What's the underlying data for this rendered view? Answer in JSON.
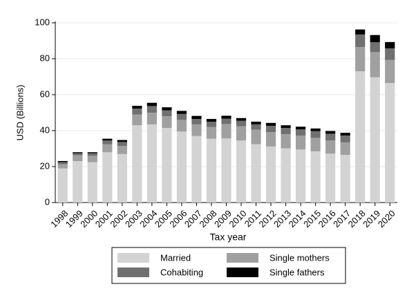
{
  "chart_data": {
    "type": "stacked_bar",
    "y_label": "USD (Billions)",
    "x_label": "Tax year",
    "categories": [
      "1998",
      "1999",
      "2000",
      "2001",
      "2002",
      "2003",
      "2004",
      "2005",
      "2006",
      "2007",
      "2008",
      "2009",
      "2010",
      "2011",
      "2012",
      "2013",
      "2014",
      "2015",
      "2016",
      "2017",
      "2018",
      "2019",
      "2020"
    ],
    "series": [
      {
        "name": "Married",
        "color": "#d3d3d3",
        "values": [
          19,
          23,
          22.5,
          28,
          27,
          43,
          43.5,
          41.5,
          39.5,
          37,
          35.5,
          35.7,
          34.5,
          32.5,
          31.2,
          30.2,
          29.5,
          28.5,
          27.2,
          26.5,
          73,
          69.7,
          66.5
        ]
      },
      {
        "name": "Single mothers",
        "color": "#a0a0a0",
        "values": [
          2.3,
          3.3,
          3.5,
          4.5,
          4.5,
          6,
          6.5,
          6.5,
          6.5,
          6.5,
          6.5,
          8,
          8,
          8,
          8,
          7.8,
          7.7,
          7.5,
          7.3,
          7,
          13.5,
          14,
          12.8
        ]
      },
      {
        "name": "Cohabiting",
        "color": "#707070",
        "values": [
          1.2,
          1.1,
          1.4,
          2,
          2.2,
          3.3,
          3.7,
          3.3,
          3.3,
          3,
          3,
          3,
          3,
          3,
          3.5,
          3.5,
          3.5,
          3.7,
          3.8,
          3.8,
          7,
          5.5,
          6.5
        ]
      },
      {
        "name": "Single fathers",
        "color": "#000000",
        "values": [
          0.6,
          0.6,
          0.6,
          1,
          1.1,
          1.5,
          1.8,
          1.7,
          1.7,
          1.7,
          1.5,
          1.6,
          1.5,
          1.5,
          1.6,
          1.5,
          1.5,
          1.5,
          1.5,
          1.5,
          2.8,
          4,
          3.5
        ]
      }
    ],
    "ylim": [
      0,
      100
    ],
    "yticks": [
      0,
      20,
      40,
      60,
      80,
      100
    ],
    "grid": true
  }
}
